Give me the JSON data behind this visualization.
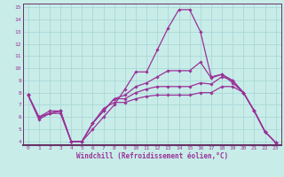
{
  "xlabel": "Windchill (Refroidissement éolien,°C)",
  "bg_color": "#c8ece8",
  "line_color": "#993399",
  "grid_color": "#aad8d8",
  "spine_color": "#663366",
  "xlim": [
    -0.5,
    23.5
  ],
  "ylim": [
    3.7,
    15.3
  ],
  "yticks": [
    4,
    5,
    6,
    7,
    8,
    9,
    10,
    11,
    12,
    13,
    14,
    15
  ],
  "xticks": [
    0,
    1,
    2,
    3,
    4,
    5,
    6,
    7,
    8,
    9,
    10,
    11,
    12,
    13,
    14,
    15,
    16,
    17,
    18,
    19,
    20,
    21,
    22,
    23
  ],
  "line1_x": [
    0,
    1,
    2,
    3,
    4,
    5,
    6,
    7,
    8,
    9,
    10,
    11,
    12,
    13,
    14,
    15,
    16,
    17,
    18,
    19,
    20,
    21,
    22,
    23
  ],
  "line1_y": [
    7.8,
    5.8,
    6.3,
    6.3,
    4.0,
    4.0,
    5.0,
    6.0,
    7.0,
    8.3,
    9.7,
    9.7,
    11.5,
    13.3,
    14.8,
    14.8,
    13.0,
    9.3,
    9.5,
    8.8,
    8.0,
    6.5,
    4.8,
    3.9
  ],
  "line2_x": [
    0,
    1,
    2,
    3,
    4,
    5,
    6,
    7,
    8,
    9,
    10,
    11,
    12,
    13,
    14,
    15,
    16,
    17,
    18,
    19,
    20,
    21,
    22,
    23
  ],
  "line2_y": [
    7.8,
    6.0,
    6.5,
    6.5,
    4.0,
    4.0,
    5.5,
    6.5,
    7.5,
    7.8,
    8.5,
    8.8,
    9.3,
    9.8,
    9.8,
    9.8,
    10.5,
    9.2,
    9.5,
    9.0,
    8.0,
    6.5,
    4.8,
    3.9
  ],
  "line3_x": [
    0,
    1,
    2,
    3,
    4,
    5,
    6,
    7,
    8,
    9,
    10,
    11,
    12,
    13,
    14,
    15,
    16,
    17,
    18,
    19,
    20,
    21,
    22,
    23
  ],
  "line3_y": [
    7.8,
    6.0,
    6.3,
    6.5,
    4.0,
    4.0,
    5.5,
    6.5,
    7.5,
    7.5,
    8.0,
    8.3,
    8.5,
    8.5,
    8.5,
    8.5,
    8.8,
    8.7,
    9.3,
    9.0,
    8.0,
    6.5,
    4.8,
    3.9
  ],
  "line4_x": [
    0,
    1,
    2,
    3,
    4,
    5,
    6,
    7,
    8,
    9,
    10,
    11,
    12,
    13,
    14,
    15,
    16,
    17,
    18,
    19,
    20,
    21,
    22,
    23
  ],
  "line4_y": [
    7.8,
    6.0,
    6.3,
    6.5,
    4.0,
    4.0,
    5.5,
    6.7,
    7.2,
    7.2,
    7.5,
    7.7,
    7.8,
    7.8,
    7.8,
    7.8,
    8.0,
    8.0,
    8.5,
    8.5,
    8.0,
    6.5,
    4.8,
    3.9
  ]
}
